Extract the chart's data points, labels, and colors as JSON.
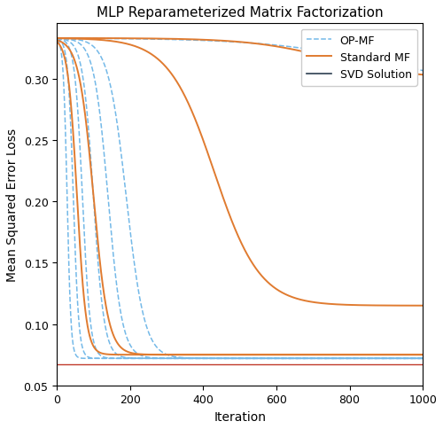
{
  "title": "MLP Reparameterized Matrix Factorization",
  "xlabel": "Iteration",
  "ylabel": "Mean Squared Error Loss",
  "xlim": [
    0,
    1000
  ],
  "ylim": [
    0.05,
    0.345
  ],
  "svd_value": 0.067,
  "op_mf_color": "#74b9e8",
  "standard_mf_color": "#e07b30",
  "svd_color": "#c0392b",
  "legend_svd_color": "#2c3e50",
  "legend_labels": [
    "OP-MF",
    "Standard MF",
    "SVD Solution"
  ],
  "background_color": "#ffffff"
}
